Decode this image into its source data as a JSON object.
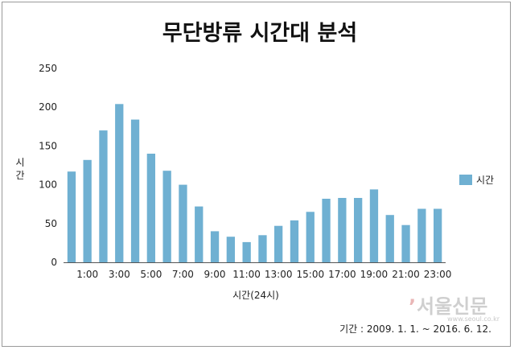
{
  "chart_data": {
    "type": "bar",
    "title": "무단방류 시간대 분석",
    "xlabel": "시간(24시)",
    "ylabel": "시간",
    "ylim": [
      0,
      250
    ],
    "yticks": [
      0,
      50,
      100,
      150,
      200,
      250
    ],
    "categories": [
      "0:00",
      "1:00",
      "2:00",
      "3:00",
      "4:00",
      "5:00",
      "6:00",
      "7:00",
      "8:00",
      "9:00",
      "10:00",
      "11:00",
      "12:00",
      "13:00",
      "14:00",
      "15:00",
      "16:00",
      "17:00",
      "18:00",
      "19:00",
      "20:00",
      "21:00",
      "22:00",
      "23:00"
    ],
    "x_tick_labels": [
      "1:00",
      "3:00",
      "5:00",
      "7:00",
      "9:00",
      "11:00",
      "13:00",
      "15:00",
      "17:00",
      "19:00",
      "21:00",
      "23:00"
    ],
    "series": [
      {
        "name": "시간",
        "color": "#6fb0d2",
        "values": [
          117,
          132,
          170,
          204,
          184,
          140,
          118,
          100,
          72,
          40,
          33,
          26,
          35,
          47,
          54,
          65,
          82,
          83,
          83,
          94,
          61,
          48,
          69,
          69
        ]
      }
    ],
    "legend_position": "right",
    "grid": false
  },
  "period_text": "기간 : 2009. 1. 1. ~ 2016. 6. 12.",
  "watermark": {
    "mark": "’",
    "name": "서울신문",
    "url": "www.seoul.co.kr"
  }
}
